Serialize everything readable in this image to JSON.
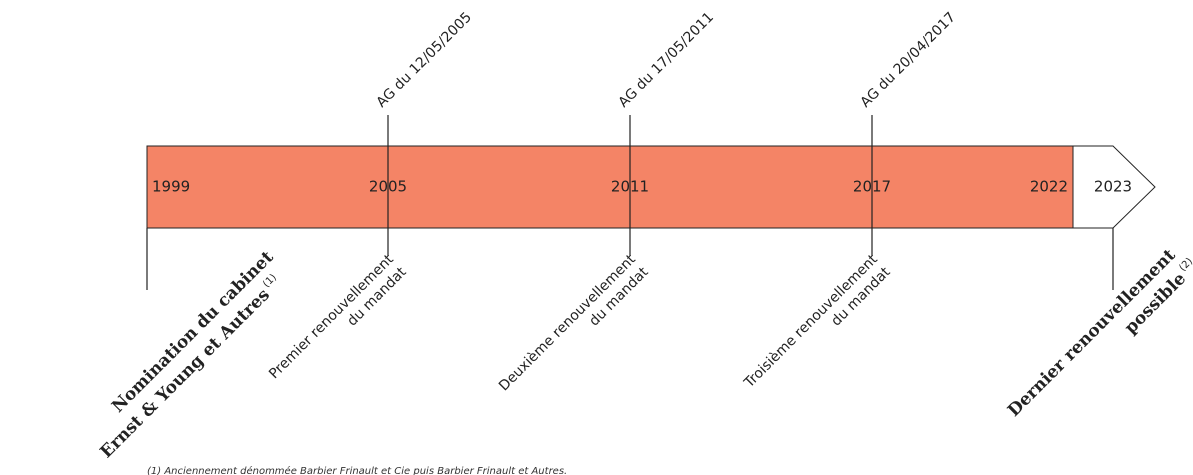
{
  "years": [
    "1999",
    "2005",
    "2011",
    "2017",
    "2022",
    "2023"
  ],
  "events": [
    {
      "date": "AG du 12/05/2005",
      "label": [
        "Premier renouvellement",
        "du mandat"
      ]
    },
    {
      "date": "AG du 17/05/2011",
      "label": [
        "Deuxième renouvellement",
        "du mandat"
      ]
    },
    {
      "date": "AG du 20/04/2017",
      "label": [
        "Troisième renouvellement",
        "du mandat"
      ]
    }
  ],
  "start": {
    "label": [
      "Nomination du cabinet",
      "Ernst & Young et Autres"
    ],
    "note": "(1)"
  },
  "end": {
    "label": [
      "Dernier renouvellement",
      "possible"
    ],
    "note": "(2)"
  },
  "footnote": "(1) Anciennement dénommée Barbier Frinault et Cie puis Barbier Frinault et Autres."
}
